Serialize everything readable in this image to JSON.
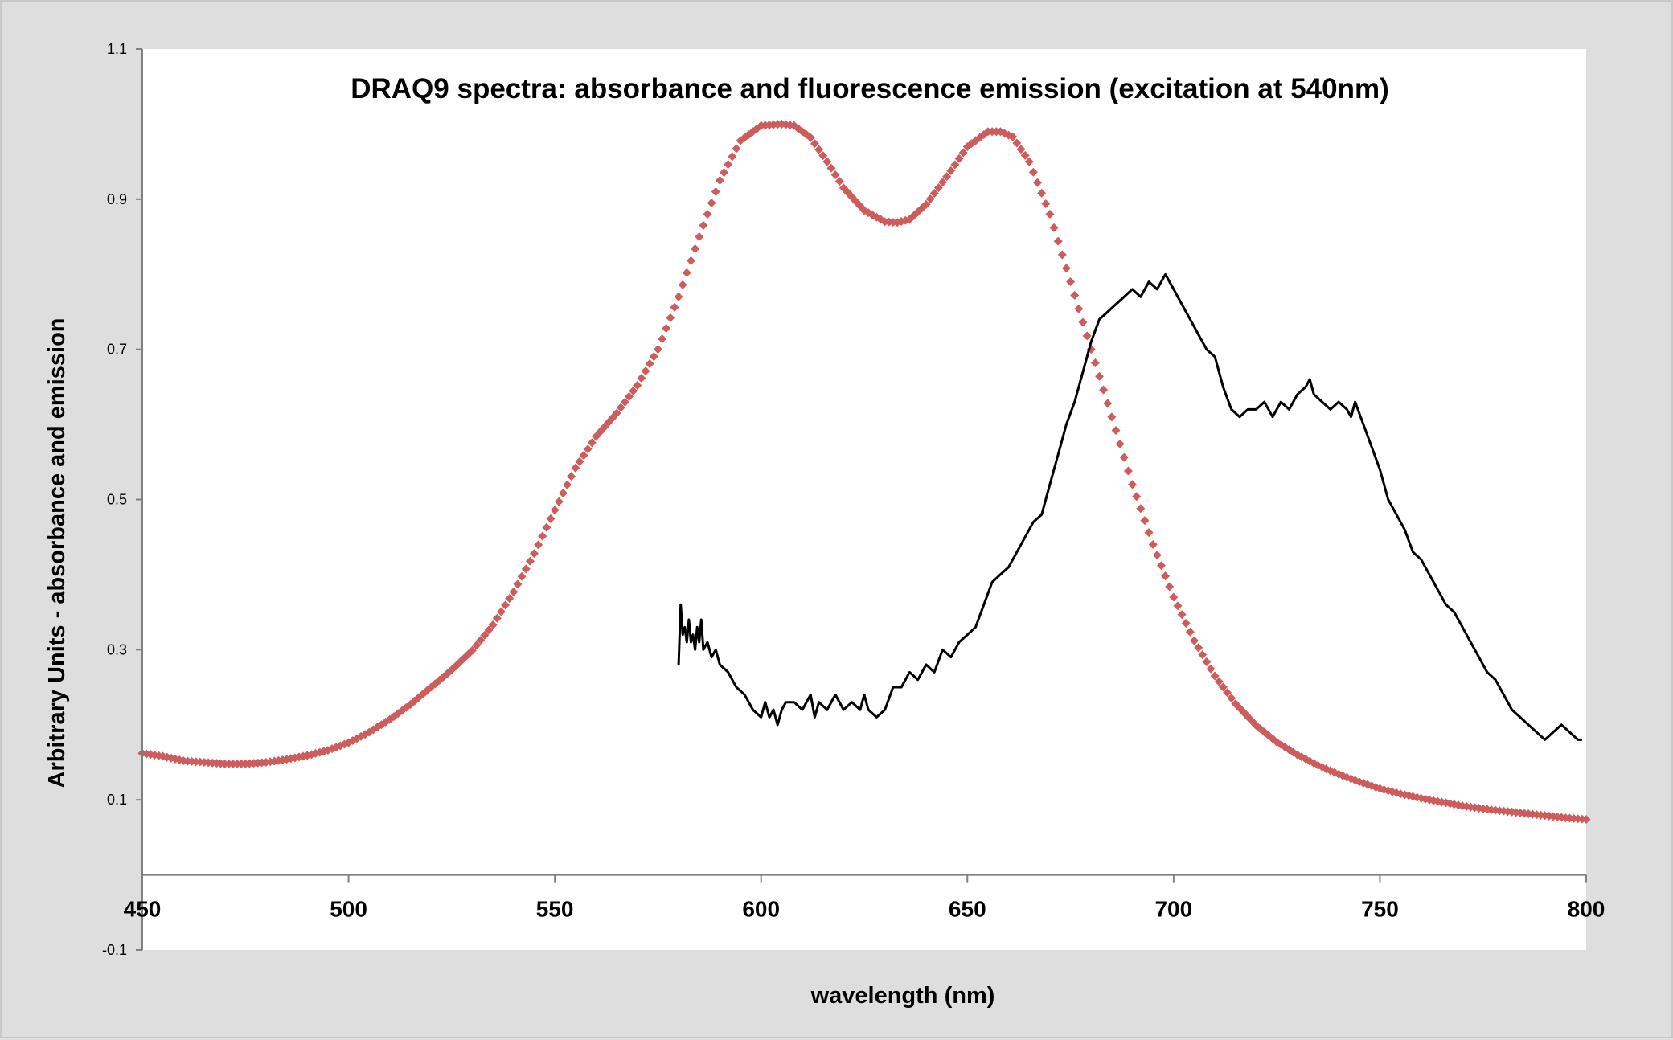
{
  "chart_data": {
    "type": "scatter",
    "title": "DRAQ9 spectra: absorbance and fluorescence emission (excitation at 540nm)",
    "xlabel": "wavelength (nm)",
    "ylabel": "Arbitrary Units - absorbance and emission",
    "xlim": [
      450,
      800
    ],
    "ylim": [
      -0.1,
      1.1
    ],
    "x_ticks": [
      "450",
      "500",
      "550",
      "600",
      "650",
      "700",
      "750",
      "800"
    ],
    "y_ticks": [
      "-0.1",
      "0.1",
      "0.3",
      "0.5",
      "0.7",
      "0.9",
      "1.1"
    ],
    "x_tick_values": [
      450,
      500,
      550,
      600,
      650,
      700,
      750,
      800
    ],
    "y_tick_values": [
      -0.1,
      0.1,
      0.3,
      0.5,
      0.7,
      0.9,
      1.1
    ],
    "x_axis_at_y": 0,
    "grid": false,
    "legend": "none",
    "series": [
      {
        "style": "markers",
        "color": "#cd5c5c",
        "x": [
          450,
          455,
          460,
          465,
          470,
          475,
          480,
          485,
          490,
          495,
          500,
          505,
          510,
          515,
          520,
          525,
          530,
          535,
          540,
          545,
          550,
          555,
          560,
          565,
          570,
          575,
          580,
          585,
          590,
          595,
          600,
          605,
          608,
          612,
          616,
          620,
          625,
          630,
          633,
          636,
          640,
          645,
          650,
          655,
          658,
          661,
          665,
          670,
          675,
          680,
          685,
          690,
          695,
          700,
          705,
          710,
          715,
          720,
          725,
          730,
          735,
          740,
          745,
          750,
          755,
          760,
          765,
          770,
          775,
          780,
          785,
          790,
          795,
          800
        ],
        "y": [
          0.162,
          0.158,
          0.152,
          0.15,
          0.148,
          0.148,
          0.15,
          0.154,
          0.159,
          0.166,
          0.176,
          0.19,
          0.207,
          0.227,
          0.25,
          0.273,
          0.299,
          0.333,
          0.377,
          0.428,
          0.486,
          0.542,
          0.584,
          0.615,
          0.652,
          0.7,
          0.77,
          0.85,
          0.925,
          0.978,
          0.998,
          1.0,
          0.998,
          0.982,
          0.95,
          0.915,
          0.885,
          0.87,
          0.869,
          0.873,
          0.893,
          0.93,
          0.97,
          0.99,
          0.99,
          0.983,
          0.95,
          0.88,
          0.79,
          0.7,
          0.61,
          0.52,
          0.44,
          0.37,
          0.312,
          0.265,
          0.228,
          0.199,
          0.177,
          0.16,
          0.146,
          0.134,
          0.124,
          0.115,
          0.108,
          0.102,
          0.097,
          0.092,
          0.088,
          0.085,
          0.082,
          0.079,
          0.076,
          0.074
        ]
      },
      {
        "style": "line",
        "color": "#000000",
        "x": [
          580,
          580.5,
          581,
          581.5,
          582,
          582.5,
          583,
          583.5,
          584,
          584.5,
          585,
          585.5,
          586,
          587,
          588,
          589,
          590,
          592,
          594,
          596,
          598,
          600,
          601,
          602,
          603,
          604,
          605,
          606,
          608,
          610,
          612,
          613,
          614,
          616,
          618,
          620,
          622,
          624,
          625,
          626,
          628,
          630,
          632,
          634,
          636,
          638,
          640,
          642,
          644,
          646,
          648,
          650,
          652,
          654,
          656,
          658,
          660,
          662,
          664,
          666,
          668,
          670,
          672,
          674,
          676,
          678,
          680,
          682,
          684,
          686,
          688,
          690,
          692,
          694,
          696,
          698,
          699,
          700,
          702,
          704,
          706,
          708,
          710,
          712,
          714,
          716,
          718,
          720,
          722,
          724,
          726,
          728,
          730,
          732,
          733,
          734,
          736,
          738,
          740,
          742,
          743,
          744,
          746,
          748,
          750,
          752,
          754,
          756,
          758,
          760,
          762,
          764,
          766,
          768,
          770,
          772,
          774,
          776,
          778,
          780,
          782,
          784,
          786,
          788,
          790,
          792,
          794,
          796,
          798,
          799
        ],
        "y": [
          0.28,
          0.36,
          0.32,
          0.33,
          0.31,
          0.34,
          0.31,
          0.32,
          0.3,
          0.33,
          0.31,
          0.34,
          0.3,
          0.31,
          0.29,
          0.3,
          0.28,
          0.27,
          0.25,
          0.24,
          0.22,
          0.21,
          0.23,
          0.21,
          0.22,
          0.2,
          0.22,
          0.23,
          0.23,
          0.22,
          0.24,
          0.21,
          0.23,
          0.22,
          0.24,
          0.22,
          0.23,
          0.22,
          0.24,
          0.22,
          0.21,
          0.22,
          0.25,
          0.25,
          0.27,
          0.26,
          0.28,
          0.27,
          0.3,
          0.29,
          0.31,
          0.32,
          0.33,
          0.36,
          0.39,
          0.4,
          0.41,
          0.43,
          0.45,
          0.47,
          0.48,
          0.52,
          0.56,
          0.6,
          0.63,
          0.67,
          0.71,
          0.74,
          0.75,
          0.76,
          0.77,
          0.78,
          0.77,
          0.79,
          0.78,
          0.8,
          0.79,
          0.78,
          0.76,
          0.74,
          0.72,
          0.7,
          0.69,
          0.65,
          0.62,
          0.61,
          0.62,
          0.62,
          0.63,
          0.61,
          0.63,
          0.62,
          0.64,
          0.65,
          0.66,
          0.64,
          0.63,
          0.62,
          0.63,
          0.62,
          0.61,
          0.63,
          0.6,
          0.57,
          0.54,
          0.5,
          0.48,
          0.46,
          0.43,
          0.42,
          0.4,
          0.38,
          0.36,
          0.35,
          0.33,
          0.31,
          0.29,
          0.27,
          0.26,
          0.24,
          0.22,
          0.21,
          0.2,
          0.19,
          0.18,
          0.19,
          0.2,
          0.19,
          0.18,
          0.18
        ]
      }
    ]
  }
}
